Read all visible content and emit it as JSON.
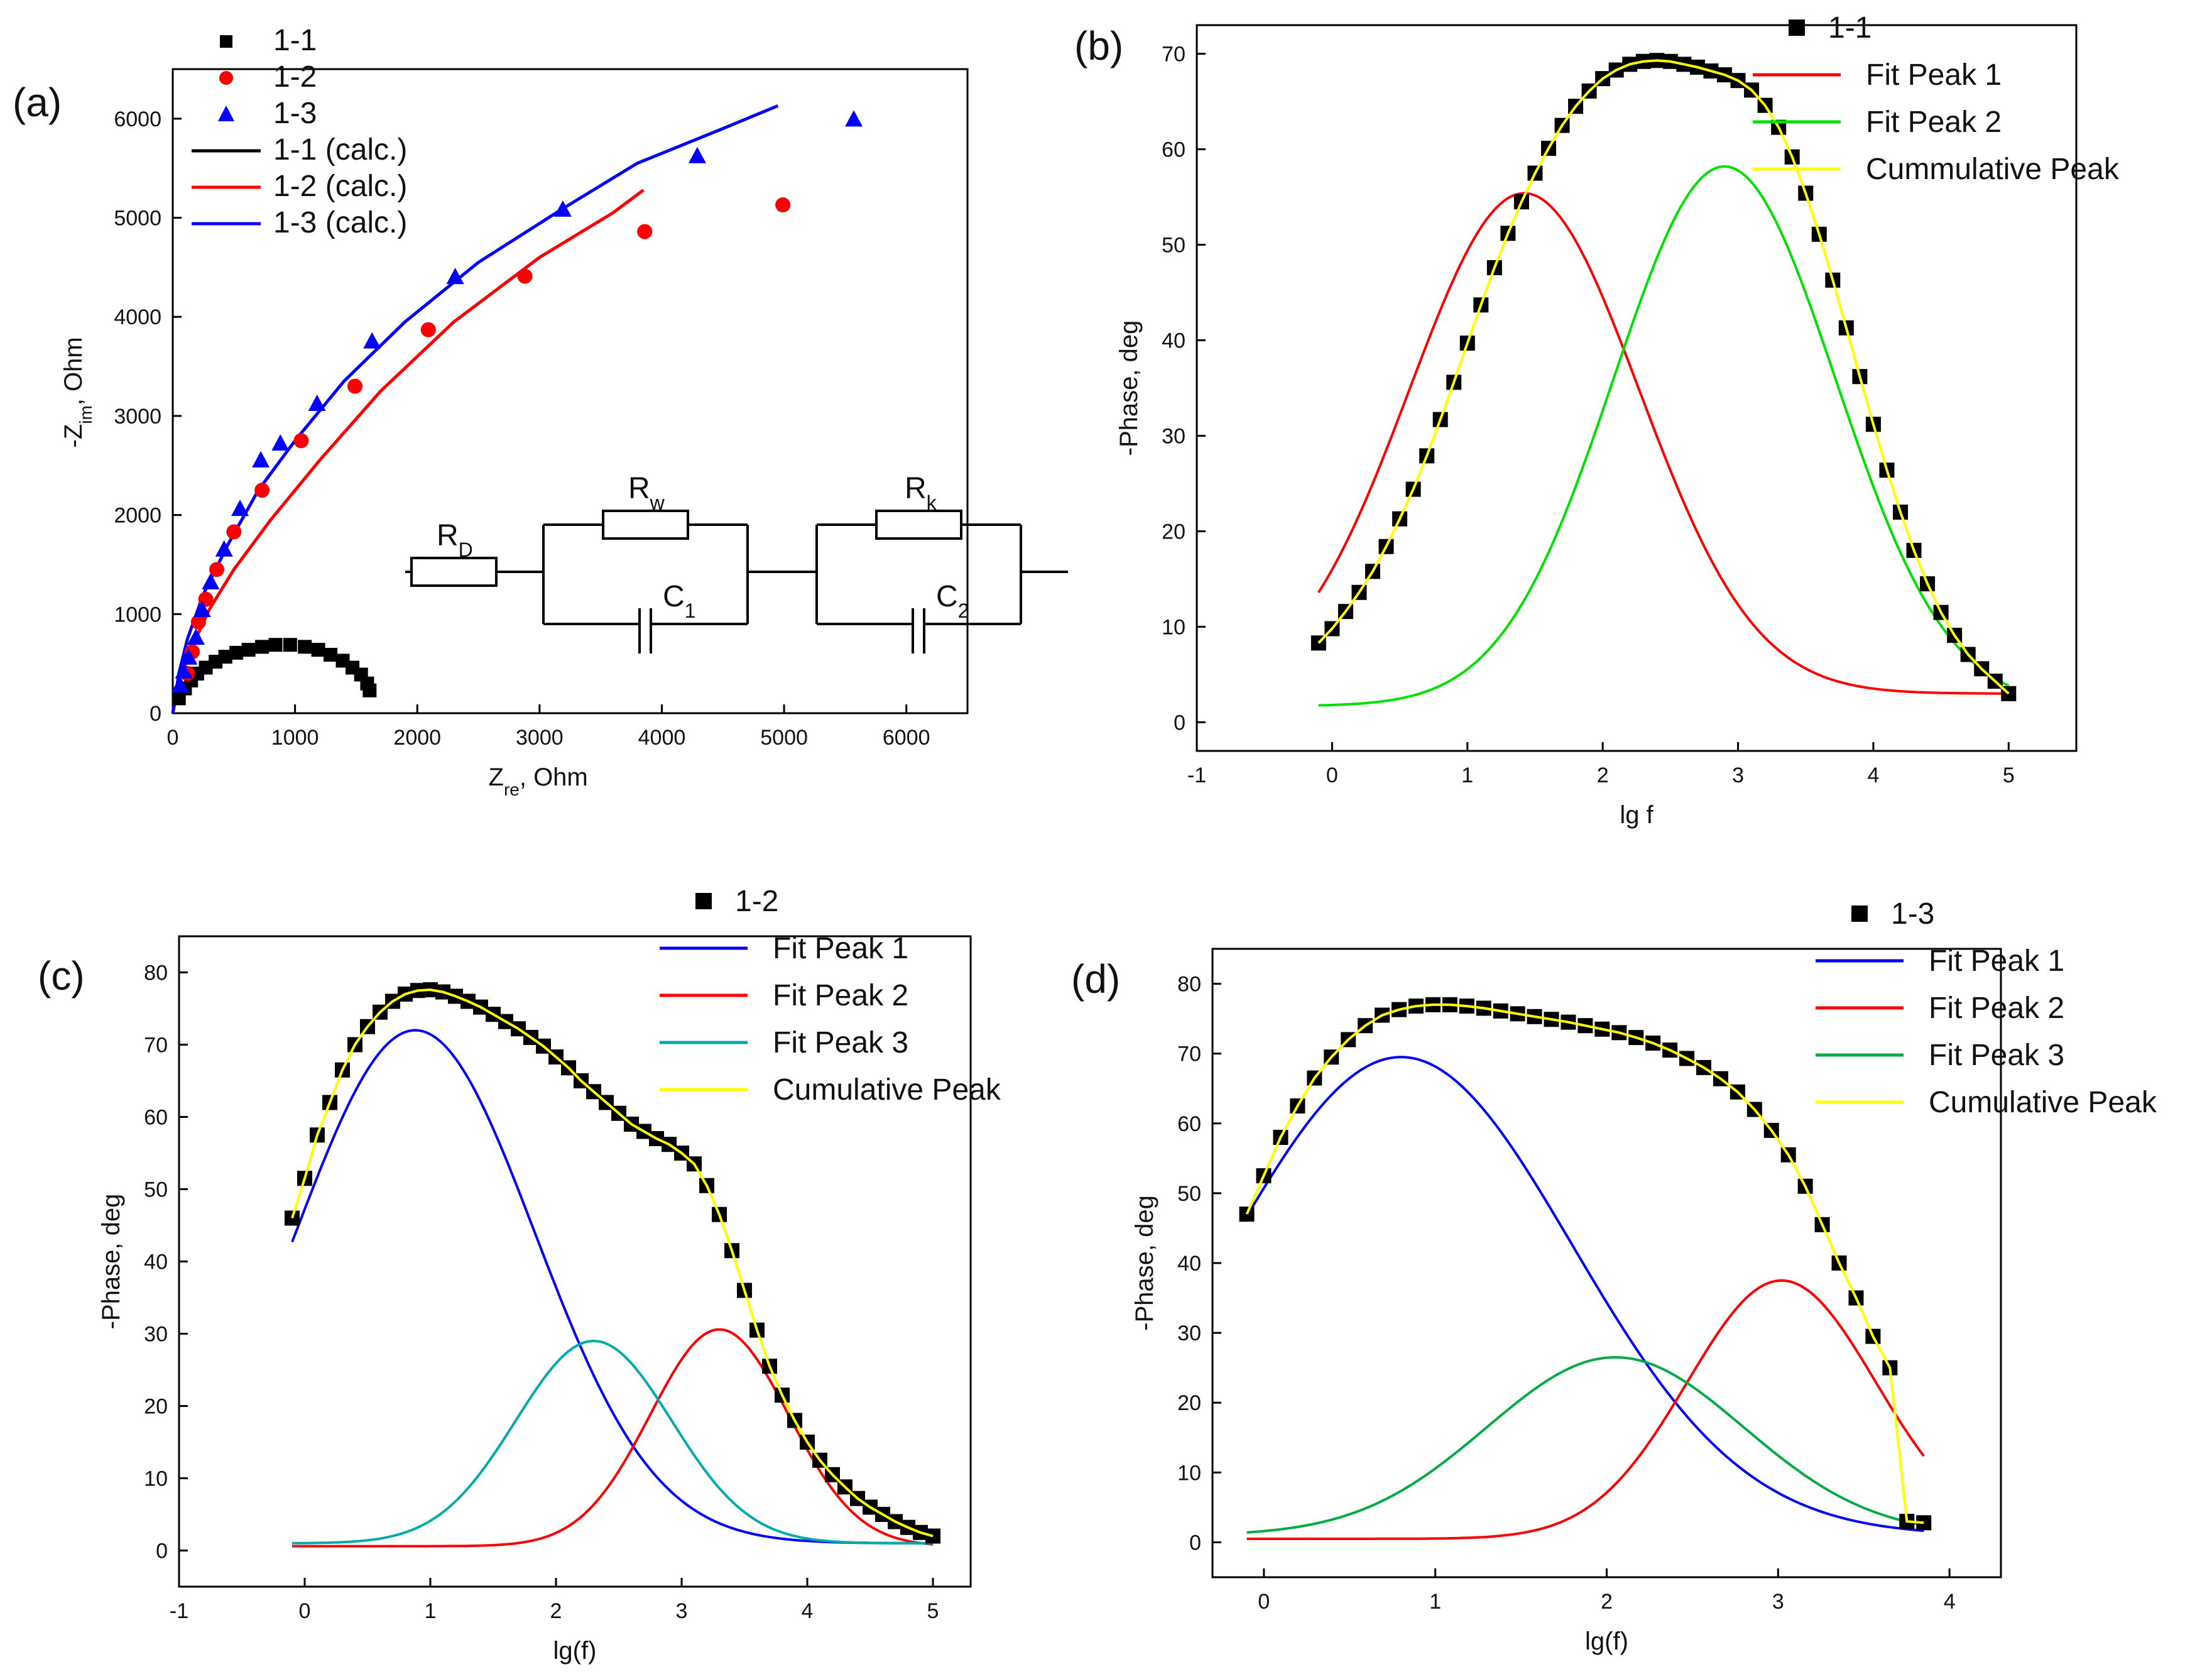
{
  "figure": {
    "panel_labels": [
      "(a)",
      "(b)",
      "(c)",
      "(d)"
    ]
  },
  "circuit": {
    "labels": [
      "R",
      "D",
      "R",
      "w",
      "C",
      "1",
      "R",
      "k",
      "C",
      "2"
    ]
  },
  "chart_data": [
    {
      "panel": "(a)",
      "type": "scatter",
      "title": "",
      "xlabel": "Z",
      "xlabel_sub": "re",
      "xlabel_tail": ", Ohm",
      "ylabel": "-Z",
      "ylabel_sub": "im",
      "ylabel_tail": ", Ohm",
      "xlim": [
        0,
        6500
      ],
      "ylim": [
        0,
        6500
      ],
      "xticks": [
        0,
        1000,
        2000,
        3000,
        4000,
        5000,
        6000
      ],
      "yticks": [
        0,
        1000,
        2000,
        3000,
        4000,
        5000,
        6000
      ],
      "series": [
        {
          "name": "1-1",
          "kind": "square",
          "color": "#000000",
          "x": [
            50,
            100,
            150,
            200,
            270,
            350,
            430,
            520,
            620,
            730,
            840,
            960,
            1080,
            1190,
            1290,
            1390,
            1470,
            1540,
            1590,
            1610
          ],
          "y": [
            150,
            250,
            330,
            400,
            460,
            520,
            570,
            610,
            640,
            670,
            690,
            690,
            670,
            640,
            590,
            530,
            460,
            390,
            300,
            230
          ]
        },
        {
          "name": "1-2",
          "kind": "circle",
          "color": "#ff0000",
          "x": [
            120,
            160,
            210,
            270,
            360,
            500,
            730,
            1050,
            1490,
            2090,
            2880,
            3860,
            4990
          ],
          "y": [
            400,
            620,
            920,
            1150,
            1450,
            1830,
            2250,
            2750,
            3300,
            3870,
            4410,
            4860,
            5130
          ]
        },
        {
          "name": "1-3",
          "kind": "triangle",
          "color": "#0000ff",
          "x": [
            60,
            90,
            130,
            190,
            240,
            310,
            420,
            550,
            720,
            880,
            1180,
            1630,
            2310,
            3190,
            4290,
            5570
          ],
          "y": [
            280,
            420,
            560,
            760,
            1040,
            1320,
            1650,
            2060,
            2550,
            2720,
            3120,
            3750,
            4400,
            5080,
            5620,
            5990
          ]
        },
        {
          "name": "1-1 (calc.)",
          "kind": "line",
          "color": "#000000",
          "x": [],
          "y": []
        },
        {
          "name": "1-2 (calc.)",
          "kind": "line",
          "color": "#ff0000",
          "x": [
            0,
            60,
            150,
            300,
            500,
            800,
            1200,
            1700,
            2300,
            3000,
            3600,
            3850
          ],
          "y": [
            0,
            350,
            650,
            1050,
            1450,
            1950,
            2550,
            3250,
            3950,
            4600,
            5050,
            5280
          ]
        },
        {
          "name": "1-3 (calc.)",
          "kind": "line",
          "color": "#0000ff",
          "x": [
            0,
            50,
            120,
            250,
            450,
            700,
            1000,
            1400,
            1900,
            2500,
            3200,
            3800,
            4500,
            4950
          ],
          "y": [
            0,
            400,
            750,
            1200,
            1700,
            2250,
            2750,
            3350,
            3950,
            4550,
            5100,
            5550,
            5900,
            6130
          ]
        }
      ]
    },
    {
      "panel": "(b)",
      "type": "scatter",
      "title": "",
      "xlabel": "lg f",
      "ylabel": "-Phase, deg",
      "xlim": [
        -1,
        5.5
      ],
      "ylim": [
        -3,
        73
      ],
      "xticks": [
        -1,
        0,
        1,
        2,
        3,
        4,
        5
      ],
      "yticks": [
        0,
        10,
        20,
        30,
        40,
        50,
        60,
        70
      ],
      "data_points": {
        "name": "1-1",
        "color": "#000000",
        "lg_f_start": -0.1,
        "lg_f_end": 5.0,
        "count": 52,
        "y": [
          8.3,
          9.8,
          11.6,
          13.6,
          15.8,
          18.4,
          21.3,
          24.4,
          27.9,
          31.7,
          35.6,
          39.7,
          43.7,
          47.6,
          51.2,
          54.5,
          57.5,
          60.1,
          62.5,
          64.5,
          66.1,
          67.4,
          68.3,
          68.9,
          69.2,
          69.3,
          69.2,
          68.9,
          68.6,
          68.2,
          67.8,
          67.2,
          66.2,
          64.6,
          62.3,
          59.2,
          55.4,
          51.1,
          46.3,
          41.3,
          36.2,
          31.2,
          26.4,
          22.0,
          18.0,
          14.5,
          11.5,
          9.1,
          7.1,
          5.6,
          4.3,
          3.0
        ]
      },
      "peaks": [
        {
          "name": "Fit Peak 1",
          "color": "#ff0000",
          "amplitude": 52.4,
          "center": 1.42,
          "width": 0.85,
          "baseline": 3.0
        },
        {
          "name": "Fit Peak 2",
          "color": "#00e000",
          "amplitude": 56.5,
          "center": 2.9,
          "width": 0.82,
          "baseline": 1.7
        }
      ],
      "cumulative": {
        "name": "Cummulative Peak",
        "color": "#ffff00"
      },
      "curve_range": [
        -0.1,
        5.0
      ],
      "legend": [
        "1-1",
        "Fit Peak 1",
        "Fit Peak 2",
        "Cummulative Peak"
      ]
    },
    {
      "panel": "(c)",
      "type": "scatter",
      "title": "",
      "xlabel": "lg(f)",
      "ylabel": "-Phase, deg",
      "xlim": [
        -1,
        5.3
      ],
      "ylim": [
        -5,
        85
      ],
      "xticks": [
        -1,
        0,
        1,
        2,
        3,
        4,
        5
      ],
      "yticks": [
        0,
        10,
        20,
        30,
        40,
        50,
        60,
        70,
        80
      ],
      "data_points": {
        "name": "1-2",
        "color": "#000000",
        "lg_f_start": -0.1,
        "lg_f_end": 5.0,
        "count": 52,
        "y": [
          46,
          51.5,
          57.5,
          62,
          66.5,
          70,
          72.5,
          74.5,
          76,
          77,
          77.5,
          77.6,
          77.3,
          76.7,
          76,
          75.2,
          74.2,
          73.2,
          72.2,
          71,
          69.8,
          68.3,
          66.8,
          65,
          63.5,
          62,
          60.5,
          59,
          58,
          57,
          56.2,
          55,
          53.5,
          50.5,
          46.5,
          41.5,
          36,
          30.5,
          25.5,
          21.5,
          18,
          15,
          12.5,
          10.5,
          8.8,
          7.2,
          6,
          5,
          4,
          3.2,
          2.5,
          2
        ]
      },
      "peaks": [
        {
          "name": "Fit Peak 1",
          "color": "#0000ff",
          "amplitude": 71.0,
          "center": 0.88,
          "width": 0.95,
          "baseline": 1.0
        },
        {
          "name": "Fit Peak 2",
          "color": "#ff0000",
          "amplitude": 30.0,
          "center": 3.3,
          "width": 0.55,
          "baseline": 0.6
        },
        {
          "name": "Fit Peak 3",
          "color": "#00aaaa",
          "amplitude": 28.0,
          "center": 2.3,
          "width": 0.62,
          "baseline": 1.0
        }
      ],
      "cumulative": {
        "name": "Cumulative Peak",
        "color": "#ffff00"
      },
      "curve_range": [
        -0.1,
        5.0
      ],
      "legend": [
        "1-2",
        "Fit Peak 1",
        "Fit Peak 2",
        "Fit Peak 3",
        "Cumulative Peak"
      ]
    },
    {
      "panel": "(d)",
      "type": "scatter",
      "title": "",
      "xlabel": "lg(f)",
      "ylabel": "-Phase, deg",
      "xlim": [
        -0.3,
        4.3
      ],
      "ylim": [
        -5,
        85
      ],
      "xticks": [
        0,
        1,
        2,
        3,
        4
      ],
      "yticks": [
        0,
        10,
        20,
        30,
        40,
        50,
        60,
        70,
        80
      ],
      "data_points": {
        "name": "1-3",
        "color": "#000000",
        "lg_f_start": -0.1,
        "lg_f_end": 3.85,
        "count": 41,
        "y": [
          47,
          52.5,
          58,
          62.5,
          66.5,
          69.5,
          72,
          74,
          75.5,
          76.3,
          76.8,
          77,
          77,
          76.8,
          76.5,
          76.1,
          75.7,
          75.3,
          74.9,
          74.5,
          74,
          73.5,
          73,
          72.3,
          71.5,
          70.5,
          69.3,
          68,
          66.4,
          64.5,
          62,
          59,
          55.5,
          51,
          45.5,
          40,
          35,
          29.5,
          25,
          3,
          2.8
        ]
      },
      "peaks": [
        {
          "name": "Fit Peak 1",
          "color": "#0000ff",
          "amplitude": 68.5,
          "center": 0.8,
          "width": 1.0,
          "baseline": 1.0
        },
        {
          "name": "Fit Peak 2",
          "color": "#ff0000",
          "amplitude": 37.0,
          "center": 3.02,
          "width": 0.55,
          "baseline": 0.5
        },
        {
          "name": "Fit Peak 3",
          "color": "#00aa44",
          "amplitude": 25.5,
          "center": 2.05,
          "width": 0.75,
          "baseline": 1.0
        }
      ],
      "cumulative": {
        "name": "Cumulative Peak",
        "color": "#ffff00"
      },
      "curve_range": [
        -0.1,
        3.85
      ],
      "legend": [
        "1-3",
        "Fit Peak 1",
        "Fit Peak 2",
        "Fit Peak 3",
        "Cumulative Peak"
      ]
    }
  ]
}
